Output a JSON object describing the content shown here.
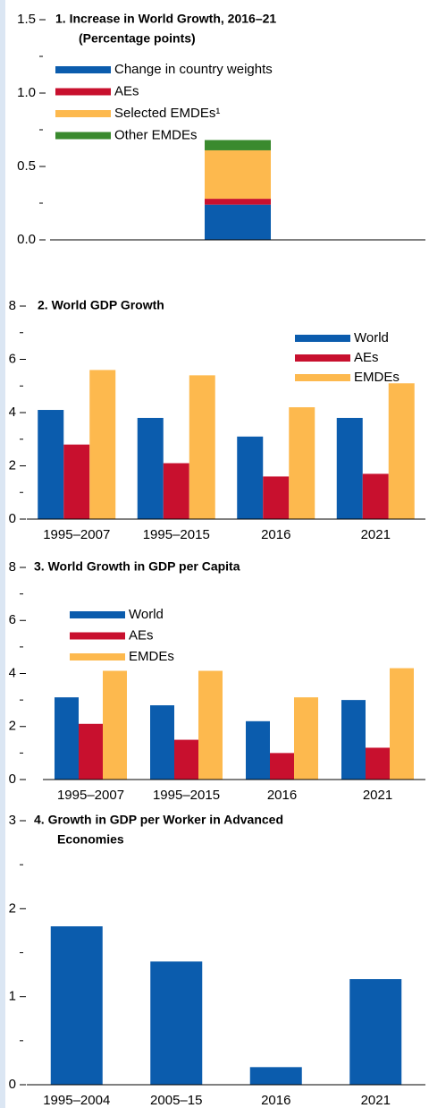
{
  "chart_data": [
    {
      "type": "bar",
      "stacked": true,
      "title": [
        "1. Increase in World Growth, 2016–21"
      ],
      "subtitle": "(Percentage points)",
      "categories": [
        null
      ],
      "series": [
        {
          "name": "Change in country weights",
          "color": "#0b5cad",
          "values": [
            0.24
          ]
        },
        {
          "name": "AEs",
          "color": "#c8102e",
          "values": [
            0.04
          ]
        },
        {
          "name": "Selected EMDEs¹",
          "color": "#fdb94e",
          "values": [
            0.33
          ]
        },
        {
          "name": "Other EMDEs",
          "color": "#3a8a2e",
          "values": [
            0.07
          ]
        }
      ],
      "ylim": [
        0,
        1.5
      ],
      "yticks": [
        {
          "value": 0,
          "label": "0.0"
        },
        0.5,
        {
          "value": 1,
          "label": "1.0"
        },
        1.5
      ],
      "yminorticks": [
        0.25,
        0.75,
        1.25
      ],
      "legend": "upper left"
    },
    {
      "type": "bar",
      "stacked": false,
      "title": [
        "2. World GDP Growth"
      ],
      "categories": [
        "1995–2007",
        "1995–2015",
        "2016",
        "2021"
      ],
      "series": [
        {
          "name": "World",
          "color": "#0b5cad",
          "values": [
            4.1,
            3.8,
            3.1,
            3.8
          ]
        },
        {
          "name": "AEs",
          "color": "#c8102e",
          "values": [
            2.8,
            2.1,
            1.6,
            1.7
          ]
        },
        {
          "name": "EMDEs",
          "color": "#fdb94e",
          "values": [
            5.6,
            5.4,
            4.2,
            5.1
          ]
        }
      ],
      "ylim": [
        0,
        8
      ],
      "yticks": [
        0,
        2,
        4,
        6,
        8
      ],
      "yminorticks": [
        1,
        3,
        5,
        7
      ],
      "legend": "upper right"
    },
    {
      "type": "bar",
      "stacked": false,
      "title": [
        "3. World Growth in GDP per Capita"
      ],
      "categories": [
        "1995–2007",
        "1995–2015",
        "2016",
        "2021"
      ],
      "series": [
        {
          "name": "World",
          "color": "#0b5cad",
          "values": [
            3.1,
            2.8,
            2.2,
            3.0
          ]
        },
        {
          "name": "AEs",
          "color": "#c8102e",
          "values": [
            2.1,
            1.5,
            1.0,
            1.2
          ]
        },
        {
          "name": "EMDEs",
          "color": "#fdb94e",
          "values": [
            4.1,
            4.1,
            3.1,
            4.2
          ]
        }
      ],
      "ylim": [
        0,
        8
      ],
      "yticks": [
        0,
        2,
        4,
        6,
        8
      ],
      "yminorticks": [
        1,
        3,
        5,
        7
      ],
      "legend": "upper left"
    },
    {
      "type": "bar",
      "stacked": false,
      "title": [
        "4. Growth in GDP per Worker in Advanced",
        "Economies"
      ],
      "categories": [
        "1995–2004",
        "2005–15",
        "2016",
        "2021"
      ],
      "series": [
        {
          "color": "#0b5cad",
          "values": [
            1.8,
            1.4,
            0.2,
            1.2
          ]
        }
      ],
      "ylim": [
        0,
        3
      ],
      "yticks": [
        0,
        1,
        2,
        3
      ],
      "yminorticks": [
        0.5,
        1.5,
        2.5
      ]
    }
  ]
}
